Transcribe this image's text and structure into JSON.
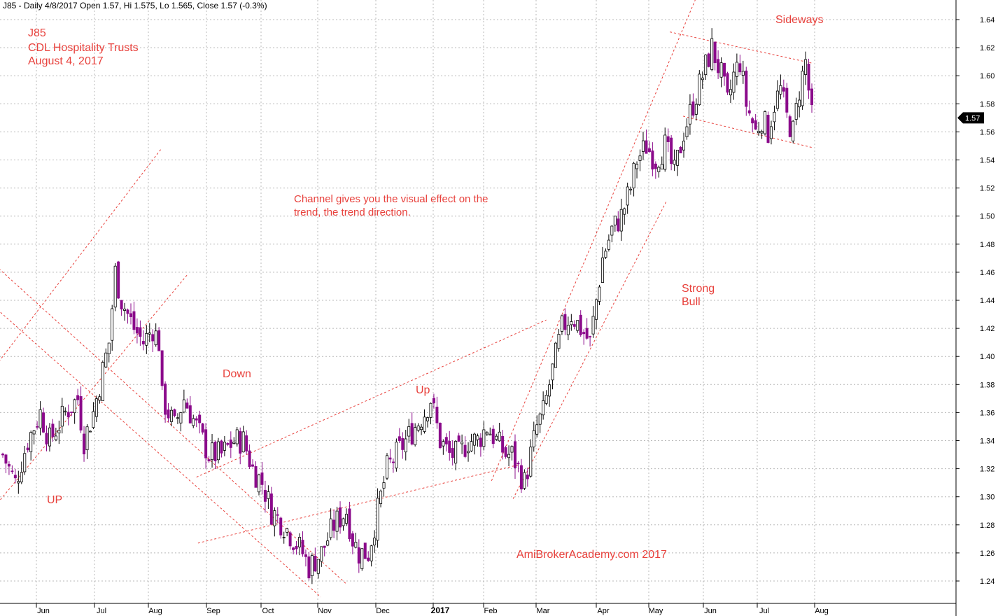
{
  "header": "J85 - Daily 4/8/2017 Open 1.57, Hi 1.575, Lo 1.565, Close 1.57 (-0.3%)",
  "titles": [
    "J85",
    "CDL Hospitality Trusts",
    "August 4, 2017"
  ],
  "colors": {
    "annotation": "#e8413c",
    "up_candle": "#000000",
    "down_candle": "#8b0a8b",
    "grid": "#b8b8b8"
  },
  "annotations": {
    "channel_note_line1": "Channel gives you the visual effect on the",
    "channel_note_line2": "trend, the trend direction.",
    "up_left": "UP",
    "down": "Down",
    "up_mid": "Up",
    "strong": "Strong",
    "bull": "Bull",
    "sideways": "Sideways",
    "watermark": "AmiBrokerAcademy.com  2017"
  },
  "current_price_label": "1.57",
  "chart_data": {
    "type": "candlestick",
    "title": "J85 - Daily 4/8/2017 Open 1.57, Hi 1.575, Lo 1.565, Close 1.57 (-0.3%)",
    "ylim": [
      1.22,
      1.65
    ],
    "yticks": [
      "1.24",
      "1.26",
      "1.28",
      "1.30",
      "1.32",
      "1.34",
      "1.36",
      "1.38",
      "1.40",
      "1.42",
      "1.44",
      "1.46",
      "1.48",
      "1.50",
      "1.52",
      "1.54",
      "1.56",
      "1.58",
      "1.60",
      "1.62",
      "1.64"
    ],
    "xticks": [
      "Jun",
      "Jul",
      "Aug",
      "Sep",
      "Oct",
      "Nov",
      "Dec",
      "2017",
      "Feb",
      "Mar",
      "Apr",
      "May",
      "Jun",
      "Jul",
      "Aug"
    ],
    "path": [
      [
        0,
        1.33
      ],
      [
        4,
        1.31
      ],
      [
        8,
        1.34
      ],
      [
        12,
        1.36
      ],
      [
        15,
        1.34
      ],
      [
        20,
        1.36
      ],
      [
        24,
        1.37
      ],
      [
        26,
        1.34
      ],
      [
        29,
        1.36
      ],
      [
        32,
        1.39
      ],
      [
        34,
        1.41
      ],
      [
        36,
        1.46
      ],
      [
        38,
        1.44
      ],
      [
        42,
        1.42
      ],
      [
        45,
        1.41
      ],
      [
        48,
        1.42
      ],
      [
        50,
        1.41
      ],
      [
        51,
        1.37
      ],
      [
        55,
        1.35
      ],
      [
        58,
        1.37
      ],
      [
        62,
        1.35
      ],
      [
        66,
        1.33
      ],
      [
        70,
        1.33
      ],
      [
        74,
        1.34
      ],
      [
        77,
        1.34
      ],
      [
        80,
        1.32
      ],
      [
        83,
        1.31
      ],
      [
        86,
        1.29
      ],
      [
        90,
        1.28
      ],
      [
        93,
        1.27
      ],
      [
        96,
        1.26
      ],
      [
        98,
        1.25
      ],
      [
        102,
        1.26
      ],
      [
        106,
        1.28
      ],
      [
        110,
        1.29
      ],
      [
        112,
        1.27
      ],
      [
        114,
        1.26
      ],
      [
        117,
        1.26
      ],
      [
        119,
        1.28
      ],
      [
        121,
        1.3
      ],
      [
        123,
        1.32
      ],
      [
        126,
        1.33
      ],
      [
        129,
        1.34
      ],
      [
        132,
        1.35
      ],
      [
        135,
        1.36
      ],
      [
        137,
        1.37
      ],
      [
        140,
        1.34
      ],
      [
        143,
        1.33
      ],
      [
        146,
        1.33
      ],
      [
        149,
        1.34
      ],
      [
        152,
        1.34
      ],
      [
        155,
        1.35
      ],
      [
        158,
        1.34
      ],
      [
        161,
        1.33
      ],
      [
        163,
        1.33
      ],
      [
        165,
        1.32
      ],
      [
        167,
        1.31
      ],
      [
        169,
        1.33
      ],
      [
        171,
        1.35
      ],
      [
        173,
        1.36
      ],
      [
        175,
        1.38
      ],
      [
        177,
        1.4
      ],
      [
        179,
        1.42
      ],
      [
        182,
        1.43
      ],
      [
        185,
        1.42
      ],
      [
        188,
        1.41
      ],
      [
        190,
        1.44
      ],
      [
        192,
        1.47
      ],
      [
        195,
        1.49
      ],
      [
        198,
        1.5
      ],
      [
        201,
        1.52
      ],
      [
        203,
        1.54
      ],
      [
        206,
        1.55
      ],
      [
        209,
        1.54
      ],
      [
        212,
        1.55
      ],
      [
        215,
        1.53
      ],
      [
        218,
        1.56
      ],
      [
        221,
        1.58
      ],
      [
        224,
        1.6
      ],
      [
        227,
        1.62
      ],
      [
        230,
        1.6
      ],
      [
        232,
        1.58
      ],
      [
        234,
        1.6
      ],
      [
        236,
        1.61
      ],
      [
        238,
        1.58
      ],
      [
        241,
        1.56
      ],
      [
        243,
        1.57
      ],
      [
        245,
        1.56
      ],
      [
        247,
        1.58
      ],
      [
        249,
        1.59
      ],
      [
        251,
        1.57
      ],
      [
        253,
        1.56
      ],
      [
        255,
        1.59
      ],
      [
        257,
        1.61
      ],
      [
        259,
        1.57
      ]
    ],
    "channels": [
      {
        "name": "UP",
        "upper": [
          [
            0,
            1.4
          ],
          [
            48,
            1.54
          ]
        ],
        "lower": [
          [
            0,
            1.3
          ],
          [
            56,
            1.45
          ]
        ]
      },
      {
        "name": "Down",
        "upper": [
          [
            0,
            1.46
          ],
          [
            104,
            1.25
          ]
        ],
        "lower": [
          [
            0,
            1.43
          ],
          [
            96,
            1.24
          ]
        ]
      },
      {
        "name": "Up",
        "upper": [
          [
            68,
            1.32
          ],
          [
            168,
            1.42
          ]
        ],
        "lower": [
          [
            68,
            1.27
          ],
          [
            160,
            1.32
          ]
        ]
      },
      {
        "name": "Strong Bull",
        "upper": [
          [
            160,
            1.33
          ],
          [
            219,
            1.64
          ]
        ],
        "lower": [
          [
            166,
            1.31
          ],
          [
            210,
            1.5
          ]
        ]
      },
      {
        "name": "Sideways",
        "upper": [
          [
            216,
            1.63
          ],
          [
            257,
            1.61
          ]
        ],
        "lower": [
          [
            220,
            1.57
          ],
          [
            257,
            1.55
          ]
        ]
      }
    ]
  }
}
